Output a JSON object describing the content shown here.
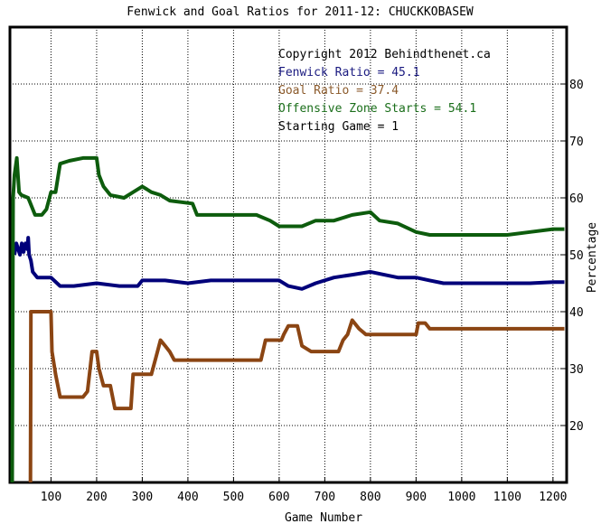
{
  "chart_data": {
    "type": "line",
    "title": "Fenwick and Goal Ratios for 2011-12: CHUCKKOBASEW",
    "xlabel": "Game Number",
    "ylabel": "Percentage",
    "xlim": [
      10,
      1230
    ],
    "ylim": [
      10,
      90
    ],
    "xticks": [
      100,
      200,
      300,
      400,
      500,
      600,
      700,
      800,
      900,
      1000,
      1100,
      1200
    ],
    "yticks": [
      20,
      30,
      40,
      50,
      60,
      70,
      80
    ],
    "grid": true,
    "yaxis_side": "right",
    "annotations": [
      {
        "text": "Copyright 2012 Behindthenet.ca",
        "color": "#000000"
      },
      {
        "text": "Fenwick Ratio = 45.1",
        "color": "#1a1a80"
      },
      {
        "text": "Goal Ratio = 37.4",
        "color": "#8b5a2b"
      },
      {
        "text": "Offensive Zone Starts = 54.1",
        "color": "#1a6e1a"
      },
      {
        "text": "Starting Game = 1",
        "color": "#000000"
      }
    ],
    "series": [
      {
        "name": "Fenwick Ratio",
        "color": "#00007a",
        "points": [
          [
            20,
            50
          ],
          [
            24,
            52
          ],
          [
            28,
            51
          ],
          [
            32,
            50
          ],
          [
            36,
            52
          ],
          [
            40,
            50.5
          ],
          [
            44,
            52
          ],
          [
            48,
            51
          ],
          [
            50,
            53
          ],
          [
            52,
            50
          ],
          [
            56,
            49
          ],
          [
            60,
            47
          ],
          [
            70,
            46
          ],
          [
            80,
            46
          ],
          [
            100,
            46
          ],
          [
            120,
            44.5
          ],
          [
            150,
            44.5
          ],
          [
            200,
            45
          ],
          [
            250,
            44.5
          ],
          [
            290,
            44.5
          ],
          [
            300,
            45.5
          ],
          [
            350,
            45.5
          ],
          [
            400,
            45
          ],
          [
            450,
            45.5
          ],
          [
            500,
            45.5
          ],
          [
            550,
            45.5
          ],
          [
            600,
            45.5
          ],
          [
            620,
            44.5
          ],
          [
            650,
            44
          ],
          [
            680,
            45
          ],
          [
            720,
            46
          ],
          [
            760,
            46.5
          ],
          [
            800,
            47
          ],
          [
            830,
            46.5
          ],
          [
            860,
            46
          ],
          [
            900,
            46
          ],
          [
            930,
            45.5
          ],
          [
            960,
            45
          ],
          [
            1000,
            45
          ],
          [
            1100,
            45
          ],
          [
            1150,
            45
          ],
          [
            1200,
            45.2
          ],
          [
            1225,
            45.2
          ]
        ]
      },
      {
        "name": "Goal Ratio",
        "color": "#8b4513",
        "points": [
          [
            55,
            10
          ],
          [
            56,
            40
          ],
          [
            60,
            40
          ],
          [
            100,
            40
          ],
          [
            102,
            33
          ],
          [
            110,
            29
          ],
          [
            120,
            25
          ],
          [
            170,
            25
          ],
          [
            180,
            26
          ],
          [
            190,
            33
          ],
          [
            200,
            33
          ],
          [
            205,
            30
          ],
          [
            215,
            27
          ],
          [
            230,
            27
          ],
          [
            240,
            23
          ],
          [
            275,
            23
          ],
          [
            280,
            29
          ],
          [
            320,
            29
          ],
          [
            330,
            32
          ],
          [
            340,
            35
          ],
          [
            350,
            34
          ],
          [
            360,
            33
          ],
          [
            370,
            31.5
          ],
          [
            400,
            31.5
          ],
          [
            500,
            31.5
          ],
          [
            560,
            31.5
          ],
          [
            570,
            35
          ],
          [
            605,
            35
          ],
          [
            610,
            36
          ],
          [
            620,
            37.5
          ],
          [
            640,
            37.5
          ],
          [
            650,
            34
          ],
          [
            670,
            33
          ],
          [
            730,
            33
          ],
          [
            740,
            35
          ],
          [
            750,
            36
          ],
          [
            760,
            38.5
          ],
          [
            775,
            37
          ],
          [
            790,
            36
          ],
          [
            850,
            36
          ],
          [
            900,
            36
          ],
          [
            905,
            38
          ],
          [
            920,
            38
          ],
          [
            930,
            37
          ],
          [
            1000,
            37
          ],
          [
            1100,
            37
          ],
          [
            1200,
            37
          ],
          [
            1225,
            37
          ]
        ]
      },
      {
        "name": "Offensive Zone Starts",
        "color": "#0d5c0d",
        "points": [
          [
            15,
            10
          ],
          [
            17,
            60
          ],
          [
            20,
            64
          ],
          [
            25,
            67
          ],
          [
            30,
            61
          ],
          [
            35,
            60.5
          ],
          [
            50,
            60
          ],
          [
            65,
            57
          ],
          [
            80,
            57
          ],
          [
            90,
            58
          ],
          [
            100,
            61
          ],
          [
            110,
            61
          ],
          [
            120,
            66
          ],
          [
            140,
            66.5
          ],
          [
            170,
            67
          ],
          [
            200,
            67
          ],
          [
            205,
            64
          ],
          [
            215,
            62
          ],
          [
            230,
            60.5
          ],
          [
            260,
            60
          ],
          [
            280,
            61
          ],
          [
            300,
            62
          ],
          [
            310,
            61.5
          ],
          [
            320,
            61
          ],
          [
            340,
            60.5
          ],
          [
            360,
            59.5
          ],
          [
            410,
            59
          ],
          [
            420,
            57
          ],
          [
            450,
            57
          ],
          [
            500,
            57
          ],
          [
            550,
            57
          ],
          [
            580,
            56
          ],
          [
            600,
            55
          ],
          [
            650,
            55
          ],
          [
            680,
            56
          ],
          [
            720,
            56
          ],
          [
            760,
            57
          ],
          [
            800,
            57.5
          ],
          [
            820,
            56
          ],
          [
            860,
            55.5
          ],
          [
            900,
            54
          ],
          [
            930,
            53.5
          ],
          [
            1000,
            53.5
          ],
          [
            1100,
            53.5
          ],
          [
            1150,
            54
          ],
          [
            1200,
            54.5
          ],
          [
            1225,
            54.5
          ]
        ]
      }
    ]
  }
}
